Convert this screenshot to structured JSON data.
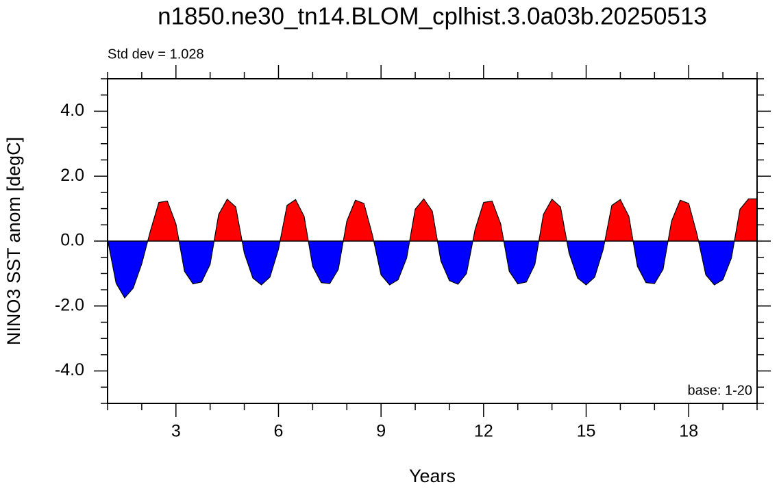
{
  "chart_data": {
    "type": "area",
    "title": "n1850.ne30_tn14.BLOM_cplhist.3.0a03b.20250513",
    "subtitle": "Std dev = 1.028",
    "annotation": "base: 1-20",
    "xlabel": "Years",
    "ylabel": "NINO3 SST anom [degC]",
    "xlim": [
      1,
      20
    ],
    "ylim": [
      -5,
      5
    ],
    "xticks": [
      3,
      6,
      9,
      12,
      15,
      18
    ],
    "xminorticks": [
      1,
      2,
      4,
      5,
      7,
      8,
      10,
      11,
      13,
      14,
      16,
      17,
      19,
      20
    ],
    "yticks": [
      {
        "value": -4,
        "label": "-4.0"
      },
      {
        "value": -2,
        "label": "-2.0"
      },
      {
        "value": 0,
        "label": "0.0"
      },
      {
        "value": 2,
        "label": "2.0"
      },
      {
        "value": 4,
        "label": "4.0"
      }
    ],
    "yminorticks": [
      -5,
      -4.5,
      -3.5,
      -3,
      -2.5,
      -1.5,
      -1,
      -0.5,
      0.5,
      1,
      1.5,
      2.5,
      3,
      3.5,
      4.5,
      5
    ],
    "above_color": "#ff0000",
    "below_color": "#0000ff",
    "x": [
      1,
      1.25,
      1.5,
      1.75,
      2,
      2.25,
      2.5,
      2.75,
      3,
      3.25,
      3.5,
      3.75,
      4,
      4.25,
      4.5,
      4.75,
      5,
      5.25,
      5.5,
      5.75,
      6,
      6.25,
      6.5,
      6.75,
      7,
      7.25,
      7.5,
      7.75,
      8,
      8.25,
      8.5,
      8.75,
      9,
      9.25,
      9.5,
      9.75,
      10,
      10.25,
      10.5,
      10.75,
      11,
      11.25,
      11.5,
      11.75,
      12,
      12.25,
      12.5,
      12.75,
      13,
      13.25,
      13.5,
      13.75,
      14,
      14.25,
      14.5,
      14.75,
      15,
      15.25,
      15.5,
      15.75,
      16,
      16.25,
      16.5,
      16.75,
      17,
      17.25,
      17.5,
      17.75,
      18,
      18.25,
      18.5,
      18.75,
      19,
      19.25,
      19.5,
      19.75,
      20
    ],
    "values": [
      0.05,
      -1.3,
      -1.75,
      -1.45,
      -0.7,
      0.3,
      1.19,
      1.23,
      0.53,
      -0.93,
      -1.32,
      -1.26,
      -0.72,
      0.82,
      1.29,
      1.05,
      -0.37,
      -1.14,
      -1.35,
      -1.11,
      -0.25,
      1.1,
      1.28,
      0.76,
      -0.78,
      -1.28,
      -1.31,
      -0.87,
      0.62,
      1.26,
      1.16,
      0.18,
      -1.04,
      -1.35,
      -1.19,
      -0.52,
      0.98,
      1.3,
      0.92,
      -0.61,
      -1.22,
      -1.33,
      -1.0,
      0.35,
      1.19,
      1.23,
      0.53,
      -0.93,
      -1.32,
      -1.26,
      -0.72,
      0.82,
      1.29,
      1.05,
      -0.37,
      -1.14,
      -1.35,
      -1.11,
      -0.25,
      1.1,
      1.28,
      0.76,
      -0.78,
      -1.28,
      -1.31,
      -0.87,
      0.62,
      1.26,
      1.16,
      0.18,
      -1.04,
      -1.35,
      -1.19,
      -0.52,
      0.98,
      1.3,
      1.3
    ]
  }
}
